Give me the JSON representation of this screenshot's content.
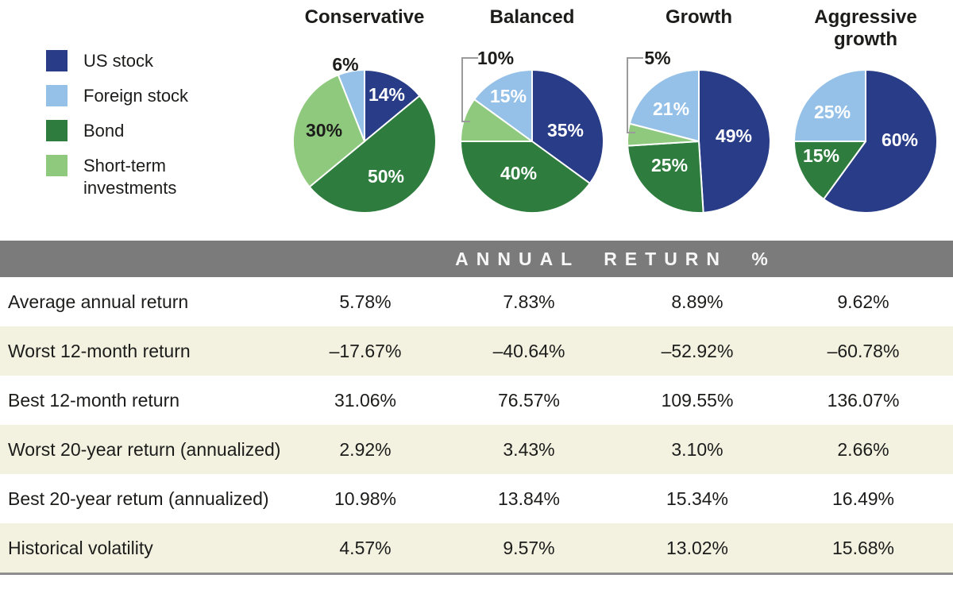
{
  "colors": {
    "US stock": "#283c87",
    "Foreign stock": "#95c1e9",
    "Bond": "#2e7d3e",
    "Short-term investments": "#8fc97d",
    "header_bar": "#7b7b7b",
    "row_shade": "#f3f1e0",
    "callout_line": "#9b9b9b",
    "label_light": "#ffffff",
    "label_dark": "#1c1c1b"
  },
  "legend": {
    "items": [
      {
        "label": "US stock"
      },
      {
        "label": "Foreign stock"
      },
      {
        "label": "Bond"
      },
      {
        "label": "Short-term investments"
      }
    ]
  },
  "chart_data": [
    {
      "type": "pie",
      "title": "Conservative",
      "slices": [
        {
          "name": "US stock",
          "value": 14,
          "label": "14%",
          "label_style": "inside-light",
          "label_xy": [
            28,
            -59
          ]
        },
        {
          "name": "Bond",
          "value": 50,
          "label": "50%",
          "label_style": "inside-light",
          "label_xy": [
            27,
            44
          ]
        },
        {
          "name": "Short-term investments",
          "value": 30,
          "label": "30%",
          "label_style": "inside-dark",
          "label_xy": [
            -51,
            -14
          ]
        },
        {
          "name": "Foreign stock",
          "value": 6,
          "label": "6%",
          "label_style": "outside-dark",
          "label_xy": [
            -24,
            -97
          ]
        }
      ]
    },
    {
      "type": "pie",
      "title": "Balanced",
      "slices": [
        {
          "name": "US stock",
          "value": 35,
          "label": "35%",
          "label_style": "inside-light",
          "label_xy": [
            42,
            -14
          ]
        },
        {
          "name": "Bond",
          "value": 40,
          "label": "40%",
          "label_style": "inside-light",
          "label_xy": [
            -17,
            40
          ]
        },
        {
          "name": "Short-term investments",
          "value": 10,
          "label": "10%",
          "label_style": "outside-dark",
          "label_xy": [
            -46,
            -105
          ]
        },
        {
          "name": "Foreign stock",
          "value": 15,
          "label": "15%",
          "label_style": "inside-light",
          "label_xy": [
            -30,
            -57
          ]
        }
      ],
      "callout_points": [
        [
          -68,
          -105
        ],
        [
          -88,
          -105
        ],
        [
          -88,
          -25
        ],
        [
          -78,
          -25
        ]
      ]
    },
    {
      "type": "pie",
      "title": "Growth",
      "slices": [
        {
          "name": "US stock",
          "value": 49,
          "label": "49%",
          "label_style": "inside-light",
          "label_xy": [
            44,
            -7
          ]
        },
        {
          "name": "Bond",
          "value": 25,
          "label": "25%",
          "label_style": "inside-light",
          "label_xy": [
            -37,
            30
          ]
        },
        {
          "name": "Short-term investments",
          "value": 5,
          "label": "5%",
          "label_style": "outside-dark",
          "label_xy": [
            -52,
            -105
          ]
        },
        {
          "name": "Foreign stock",
          "value": 21,
          "label": "21%",
          "label_style": "inside-light",
          "label_xy": [
            -35,
            -41
          ]
        }
      ],
      "callout_points": [
        [
          -70,
          -105
        ],
        [
          -90,
          -105
        ],
        [
          -90,
          -11
        ],
        [
          -80,
          -11
        ]
      ]
    },
    {
      "type": "pie",
      "title": "Aggressive growth",
      "slices": [
        {
          "name": "US stock",
          "value": 60,
          "label": "60%",
          "label_style": "inside-light",
          "label_xy": [
            43,
            -2
          ]
        },
        {
          "name": "Bond",
          "value": 15,
          "label": "15%",
          "label_style": "inside-light",
          "label_xy": [
            -56,
            18
          ]
        },
        {
          "name": "Foreign stock",
          "value": 25,
          "label": "25%",
          "label_style": "inside-light",
          "label_xy": [
            -42,
            -37
          ]
        }
      ]
    }
  ],
  "table": {
    "header": "ANNUAL RETURN %",
    "columns": [
      "Conservative",
      "Balanced",
      "Growth",
      "Aggressive growth"
    ],
    "rows": [
      {
        "label": "Average annual return",
        "values": [
          "5.78%",
          "7.83%",
          "8.89%",
          "9.62%"
        ]
      },
      {
        "label": "Worst 12-month return",
        "values": [
          "–17.67%",
          "–40.64%",
          "–52.92%",
          "–60.78%"
        ]
      },
      {
        "label": "Best 12-month return",
        "values": [
          "31.06%",
          "76.57%",
          "109.55%",
          "136.07%"
        ]
      },
      {
        "label": "Worst 20-year return (annualized)",
        "values": [
          "2.92%",
          "3.43%",
          "3.10%",
          "2.66%"
        ]
      },
      {
        "label": "Best 20-year retum (annualized)",
        "values": [
          "10.98%",
          "13.84%",
          "15.34%",
          "16.49%"
        ]
      },
      {
        "label": "Historical volatility",
        "values": [
          "4.57%",
          "9.57%",
          "13.02%",
          "15.68%"
        ]
      }
    ]
  }
}
